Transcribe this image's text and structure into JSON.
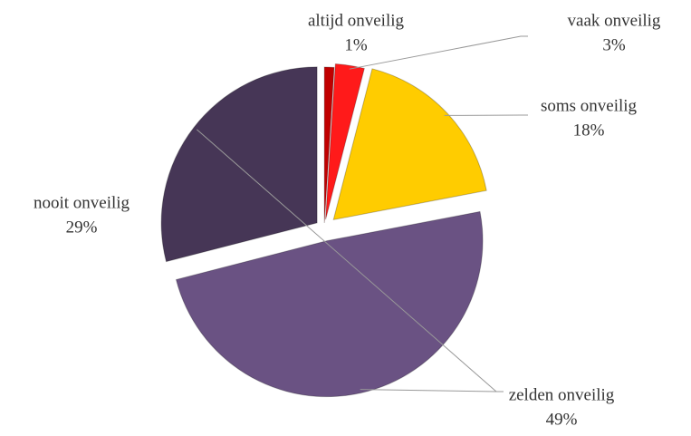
{
  "chart_data": {
    "type": "pie",
    "categories": [
      "altijd onveilig",
      "vaak onveilig",
      "soms onveilig",
      "zelden onveilig",
      "nooit onveilig"
    ],
    "values": [
      1,
      3,
      18,
      49,
      29
    ],
    "value_labels": [
      "1%",
      "3%",
      "18%",
      "49%",
      "29%"
    ],
    "colors": [
      "#c00000",
      "#ff1a1a",
      "#ffcc00",
      "#6a5283",
      "#463656"
    ]
  }
}
